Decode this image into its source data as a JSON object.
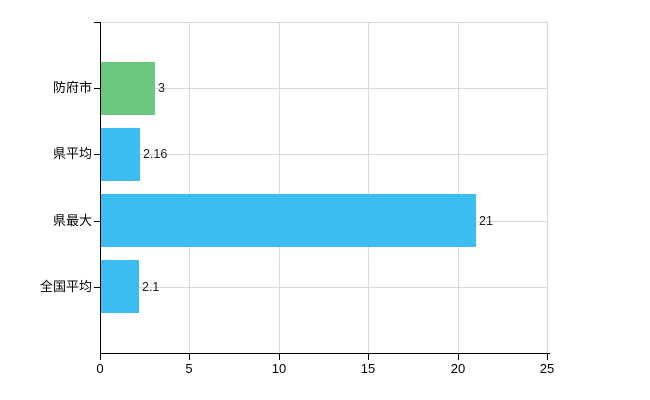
{
  "chart_data": {
    "type": "bar",
    "orientation": "horizontal",
    "categories": [
      "防府市",
      "県平均",
      "県最大",
      "全国平均"
    ],
    "values": [
      3,
      2.16,
      21,
      2.1
    ],
    "value_labels": [
      "3",
      "2.16",
      "21",
      "2.1"
    ],
    "bar_colors": [
      "#6cc87e",
      "#3dbcf2",
      "#3dbcf2",
      "#3dbcf2"
    ],
    "x_ticks": [
      0,
      5,
      10,
      15,
      20,
      25
    ],
    "x_tick_labels": [
      "0",
      "5",
      "10",
      "15",
      "20",
      "25"
    ],
    "xlim": [
      0,
      25
    ],
    "grid": true,
    "grid_horizontal_at_category_centers": true,
    "legend": null,
    "colors": {
      "grid": "#d9d9d9",
      "axis": "#000000",
      "tick_text": "#000000",
      "value_text": "#222222",
      "background": "#ffffff",
      "bar_green": "#6cc87e",
      "bar_blue": "#3dbcf2"
    }
  }
}
